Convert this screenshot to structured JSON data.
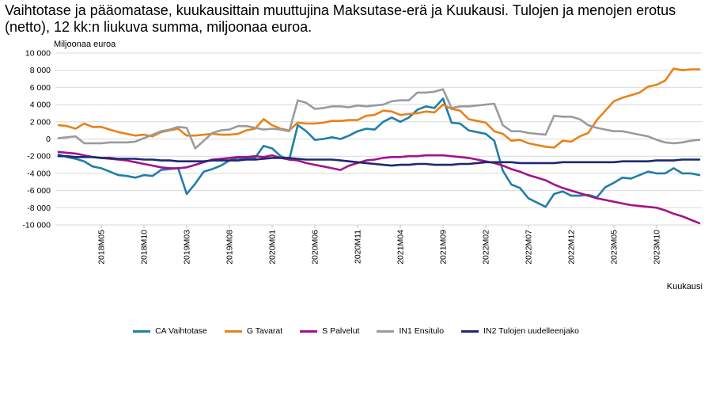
{
  "chart_data": {
    "type": "line",
    "title": "Vaihtotase ja pääomatase, kuukausittain muuttujina Maksutase-erä ja Kuukausi. Tulojen ja menojen erotus (netto), 12 kk:n liukuva summa, miljoonaa euroa.",
    "ylabel": "Miljoonaa euroa",
    "xlabel": "Kuukausi",
    "ylim": [
      -10000,
      10000
    ],
    "yticks": [
      10000,
      8000,
      6000,
      4000,
      2000,
      0,
      -2000,
      -4000,
      -6000,
      -8000,
      -10000
    ],
    "ytick_labels": [
      "10 000",
      "8 000",
      "6 000",
      "4 000",
      "2 000",
      "0",
      "-2 000",
      "-4 000",
      "-6 000",
      "-8 000",
      "-10 000"
    ],
    "x_start": "2017M12",
    "x_end": "2024M03",
    "xtick_labels": [
      "2018M05",
      "2018M10",
      "2019M03",
      "2019M08",
      "2020M01",
      "2020M06",
      "2020M11",
      "2021M04",
      "2021M09",
      "2022M02",
      "2022M07",
      "2022M12",
      "2023M05",
      "2023M10"
    ],
    "grid": true,
    "legend_position": "bottom",
    "series": [
      {
        "name": "CA Vaihtotase",
        "color": "#1f7fa8",
        "values": [
          -1800,
          -2100,
          -2300,
          -2600,
          -3200,
          -3400,
          -3800,
          -4200,
          -4300,
          -4500,
          -4200,
          -4300,
          -3600,
          -3500,
          -3400,
          -6400,
          -5200,
          -3800,
          -3500,
          -3100,
          -2500,
          -2200,
          -2300,
          -2200,
          -800,
          -1100,
          -2000,
          -2400,
          1600,
          900,
          -100,
          0,
          200,
          0,
          400,
          900,
          1200,
          1100,
          2000,
          2500,
          2000,
          2500,
          3400,
          3800,
          3600,
          4700,
          1900,
          1800,
          1000,
          800,
          600,
          -200,
          -3700,
          -5300,
          -5700,
          -6900,
          -7400,
          -7900,
          -6400,
          -6100,
          -6600,
          -6600,
          -6500,
          -6800,
          -5600,
          -5100,
          -4500,
          -4600,
          -4200,
          -3800,
          -4000,
          -4000,
          -3400,
          -4000,
          -4000,
          -4200
        ]
      },
      {
        "name": "G Tavarat",
        "color": "#e8821a",
        "values": [
          1600,
          1500,
          1200,
          1800,
          1400,
          1400,
          1100,
          800,
          600,
          400,
          500,
          300,
          800,
          1000,
          1200,
          400,
          400,
          500,
          600,
          500,
          500,
          600,
          1000,
          1200,
          2300,
          1600,
          1200,
          1000,
          1900,
          1800,
          1800,
          1900,
          2100,
          2100,
          2200,
          2200,
          2700,
          2800,
          3300,
          3200,
          2800,
          2900,
          3000,
          3200,
          3100,
          4000,
          3500,
          3300,
          2300,
          2100,
          1900,
          900,
          600,
          -200,
          -100,
          -500,
          -700,
          -900,
          -1000,
          -200,
          -300,
          300,
          700,
          2200,
          3300,
          4400,
          4800,
          5100,
          5400,
          6100,
          6300,
          6800,
          8200,
          8000,
          8100,
          8100
        ]
      },
      {
        "name": "S Palvelut",
        "color": "#a3128c",
        "values": [
          -1500,
          -1600,
          -1700,
          -1900,
          -2100,
          -2200,
          -2300,
          -2400,
          -2500,
          -2700,
          -2900,
          -3100,
          -3300,
          -3400,
          -3400,
          -3300,
          -3000,
          -2700,
          -2400,
          -2300,
          -2200,
          -2100,
          -2100,
          -2000,
          -2100,
          -1900,
          -2200,
          -2400,
          -2500,
          -2800,
          -3000,
          -3200,
          -3400,
          -3600,
          -3100,
          -2800,
          -2500,
          -2400,
          -2200,
          -2100,
          -2100,
          -2000,
          -2000,
          -1900,
          -1900,
          -1900,
          -2000,
          -2100,
          -2200,
          -2400,
          -2600,
          -2800,
          -3100,
          -3500,
          -3800,
          -4200,
          -4500,
          -4800,
          -5300,
          -5700,
          -6000,
          -6300,
          -6600,
          -6900,
          -7100,
          -7300,
          -7500,
          -7700,
          -7800,
          -7900,
          -8000,
          -8300,
          -8700,
          -9000,
          -9400,
          -9800
        ]
      },
      {
        "name": "IN1 Ensitulo",
        "color": "#9a9ba0",
        "values": [
          100,
          200,
          300,
          -500,
          -500,
          -500,
          -400,
          -400,
          -400,
          -300,
          100,
          500,
          900,
          1100,
          1400,
          1300,
          -1100,
          -200,
          700,
          1000,
          1100,
          1500,
          1500,
          1300,
          1100,
          1200,
          1100,
          900,
          4500,
          4200,
          3500,
          3600,
          3800,
          3800,
          3700,
          3900,
          3800,
          3900,
          4000,
          4400,
          4500,
          4500,
          5400,
          5400,
          5500,
          5800,
          3600,
          3800,
          3800,
          3900,
          4000,
          4100,
          1600,
          900,
          900,
          700,
          600,
          500,
          2700,
          2600,
          2600,
          2300,
          1600,
          1300,
          1100,
          900,
          900,
          700,
          500,
          300,
          -100,
          -400,
          -500,
          -400,
          -200,
          -100
        ]
      },
      {
        "name": "IN2 Tulojen uudelleenjako",
        "color": "#1b2a6e",
        "values": [
          -2000,
          -2000,
          -2100,
          -2100,
          -2100,
          -2200,
          -2200,
          -2300,
          -2300,
          -2300,
          -2400,
          -2400,
          -2500,
          -2500,
          -2600,
          -2600,
          -2600,
          -2600,
          -2500,
          -2500,
          -2500,
          -2500,
          -2400,
          -2400,
          -2300,
          -2200,
          -2200,
          -2200,
          -2300,
          -2400,
          -2400,
          -2400,
          -2400,
          -2500,
          -2600,
          -2700,
          -2800,
          -2900,
          -3000,
          -3100,
          -3000,
          -3000,
          -2900,
          -2900,
          -3000,
          -3000,
          -3000,
          -2900,
          -2900,
          -2800,
          -2700,
          -2700,
          -2700,
          -2700,
          -2800,
          -2800,
          -2800,
          -2800,
          -2800,
          -2700,
          -2700,
          -2700,
          -2700,
          -2700,
          -2700,
          -2700,
          -2600,
          -2600,
          -2600,
          -2600,
          -2500,
          -2500,
          -2500,
          -2400,
          -2400,
          -2400
        ]
      }
    ]
  }
}
